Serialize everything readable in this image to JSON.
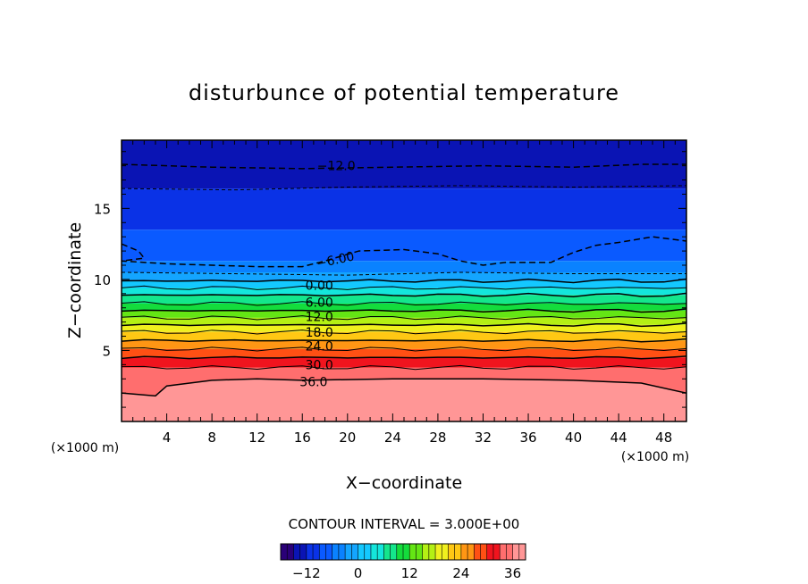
{
  "chart_data": {
    "type": "heatmap",
    "title": "disturbunce of potential temperature",
    "xlabel": "X−coordinate",
    "ylabel": "Z−coordinate",
    "x_unit": "(×1000 m)",
    "y_unit": "(×1000 m)",
    "xlim": [
      0,
      50
    ],
    "ylim": [
      0,
      19.8
    ],
    "x_ticks": [
      4,
      8,
      12,
      16,
      20,
      24,
      28,
      32,
      36,
      40,
      44,
      48
    ],
    "x_tick_labels": [
      "4",
      "8",
      "12",
      "16",
      "20",
      "24",
      "28",
      "32",
      "36",
      "40",
      "44",
      "48"
    ],
    "y_ticks": [
      5,
      10,
      15
    ],
    "y_tick_labels": [
      "5",
      "10",
      "15"
    ],
    "contour_interval_text": "CONTOUR INTERVAL = 3.000E+00",
    "contour_levels": [
      -12,
      -9,
      -6,
      -3,
      0,
      3,
      6,
      9,
      12,
      15,
      18,
      21,
      24,
      27,
      30,
      33,
      36
    ],
    "contour_labels": [
      {
        "text": "−12.0",
        "level": -12,
        "x": 19,
        "z": 18.0
      },
      {
        "text": "−6.00",
        "level": -6,
        "x": 19,
        "z": 11.4
      },
      {
        "text": "0.00",
        "level": 0,
        "x": 17.5,
        "z": 9.6
      },
      {
        "text": "6.00",
        "level": 6,
        "x": 17.5,
        "z": 8.4
      },
      {
        "text": "12.0",
        "level": 12,
        "x": 17.5,
        "z": 7.4
      },
      {
        "text": "18.0",
        "level": 18,
        "x": 17.5,
        "z": 6.3
      },
      {
        "text": "24.0",
        "level": 24,
        "x": 17.5,
        "z": 5.3
      },
      {
        "text": "30.0",
        "level": 30,
        "x": 17.5,
        "z": 4.0
      },
      {
        "text": "36.0",
        "level": 36,
        "x": 17,
        "z": 2.8
      }
    ],
    "dashed_contours": [
      {
        "level": -12,
        "points": [
          [
            0,
            18.1
          ],
          [
            8,
            17.9
          ],
          [
            16,
            17.8
          ],
          [
            24,
            17.9
          ],
          [
            32,
            18.0
          ],
          [
            40,
            17.9
          ],
          [
            46,
            18.1
          ],
          [
            50,
            18.1
          ]
        ]
      },
      {
        "level": -9,
        "points": [
          [
            0,
            16.4
          ],
          [
            10,
            16.3
          ],
          [
            20,
            16.5
          ],
          [
            30,
            16.6
          ],
          [
            40,
            16.5
          ],
          [
            50,
            16.6
          ]
        ]
      },
      {
        "level": -6,
        "points": [
          [
            0,
            12.5
          ],
          [
            1.5,
            12.0
          ],
          [
            2,
            11.5
          ],
          [
            0,
            11.3
          ],
          [
            4,
            11.1
          ],
          [
            8,
            11.0
          ],
          [
            12,
            10.9
          ],
          [
            16,
            10.9
          ],
          [
            18,
            11.3
          ],
          [
            21,
            12.0
          ],
          [
            25,
            12.1
          ],
          [
            28,
            11.8
          ],
          [
            30,
            11.3
          ],
          [
            32,
            11.0
          ],
          [
            34,
            11.2
          ],
          [
            38,
            11.2
          ],
          [
            40,
            11.9
          ],
          [
            42,
            12.4
          ],
          [
            44,
            12.6
          ],
          [
            47,
            13.0
          ],
          [
            50,
            12.7
          ]
        ]
      },
      {
        "level": -3,
        "points": [
          [
            0,
            10.5
          ],
          [
            10,
            10.4
          ],
          [
            20,
            10.3
          ],
          [
            30,
            10.5
          ],
          [
            40,
            10.4
          ],
          [
            50,
            10.4
          ]
        ]
      }
    ],
    "solid_contours": [
      {
        "level": 0,
        "z": 9.9
      },
      {
        "level": 3,
        "z": 9.4
      },
      {
        "level": 6,
        "z": 8.9
      },
      {
        "level": 9,
        "z": 8.3
      },
      {
        "level": 12,
        "z": 7.8
      },
      {
        "level": 15,
        "z": 7.3
      },
      {
        "level": 18,
        "z": 6.8
      },
      {
        "level": 21,
        "z": 6.3
      },
      {
        "level": 24,
        "z": 5.7
      },
      {
        "level": 27,
        "z": 5.1
      },
      {
        "level": 30,
        "z": 4.5
      },
      {
        "level": 33,
        "z": 3.8
      },
      {
        "level": 36,
        "points": [
          [
            0,
            2.0
          ],
          [
            3,
            1.8
          ],
          [
            4,
            2.5
          ],
          [
            8,
            2.9
          ],
          [
            12,
            3.0
          ],
          [
            16,
            2.9
          ],
          [
            24,
            3.0
          ],
          [
            32,
            3.0
          ],
          [
            40,
            2.9
          ],
          [
            46,
            2.7
          ],
          [
            50,
            2.0
          ]
        ]
      }
    ],
    "colorbar": {
      "min": -18,
      "max": 39,
      "tick_values": [
        -12,
        0,
        12,
        24,
        36
      ],
      "tick_labels": [
        "−12",
        "0",
        "12",
        "24",
        "36"
      ]
    },
    "colormap": [
      "#2a0078",
      "#0a14b4",
      "#0a32e6",
      "#0a5aff",
      "#0a82ff",
      "#14a5ff",
      "#14c8ff",
      "#14e6dc",
      "#14e68c",
      "#14dc3c",
      "#64e614",
      "#b4f014",
      "#f0f01e",
      "#ffc814",
      "#ff9614",
      "#ff5014",
      "#f0141e",
      "#ff6e6e",
      "#ff9696"
    ]
  }
}
